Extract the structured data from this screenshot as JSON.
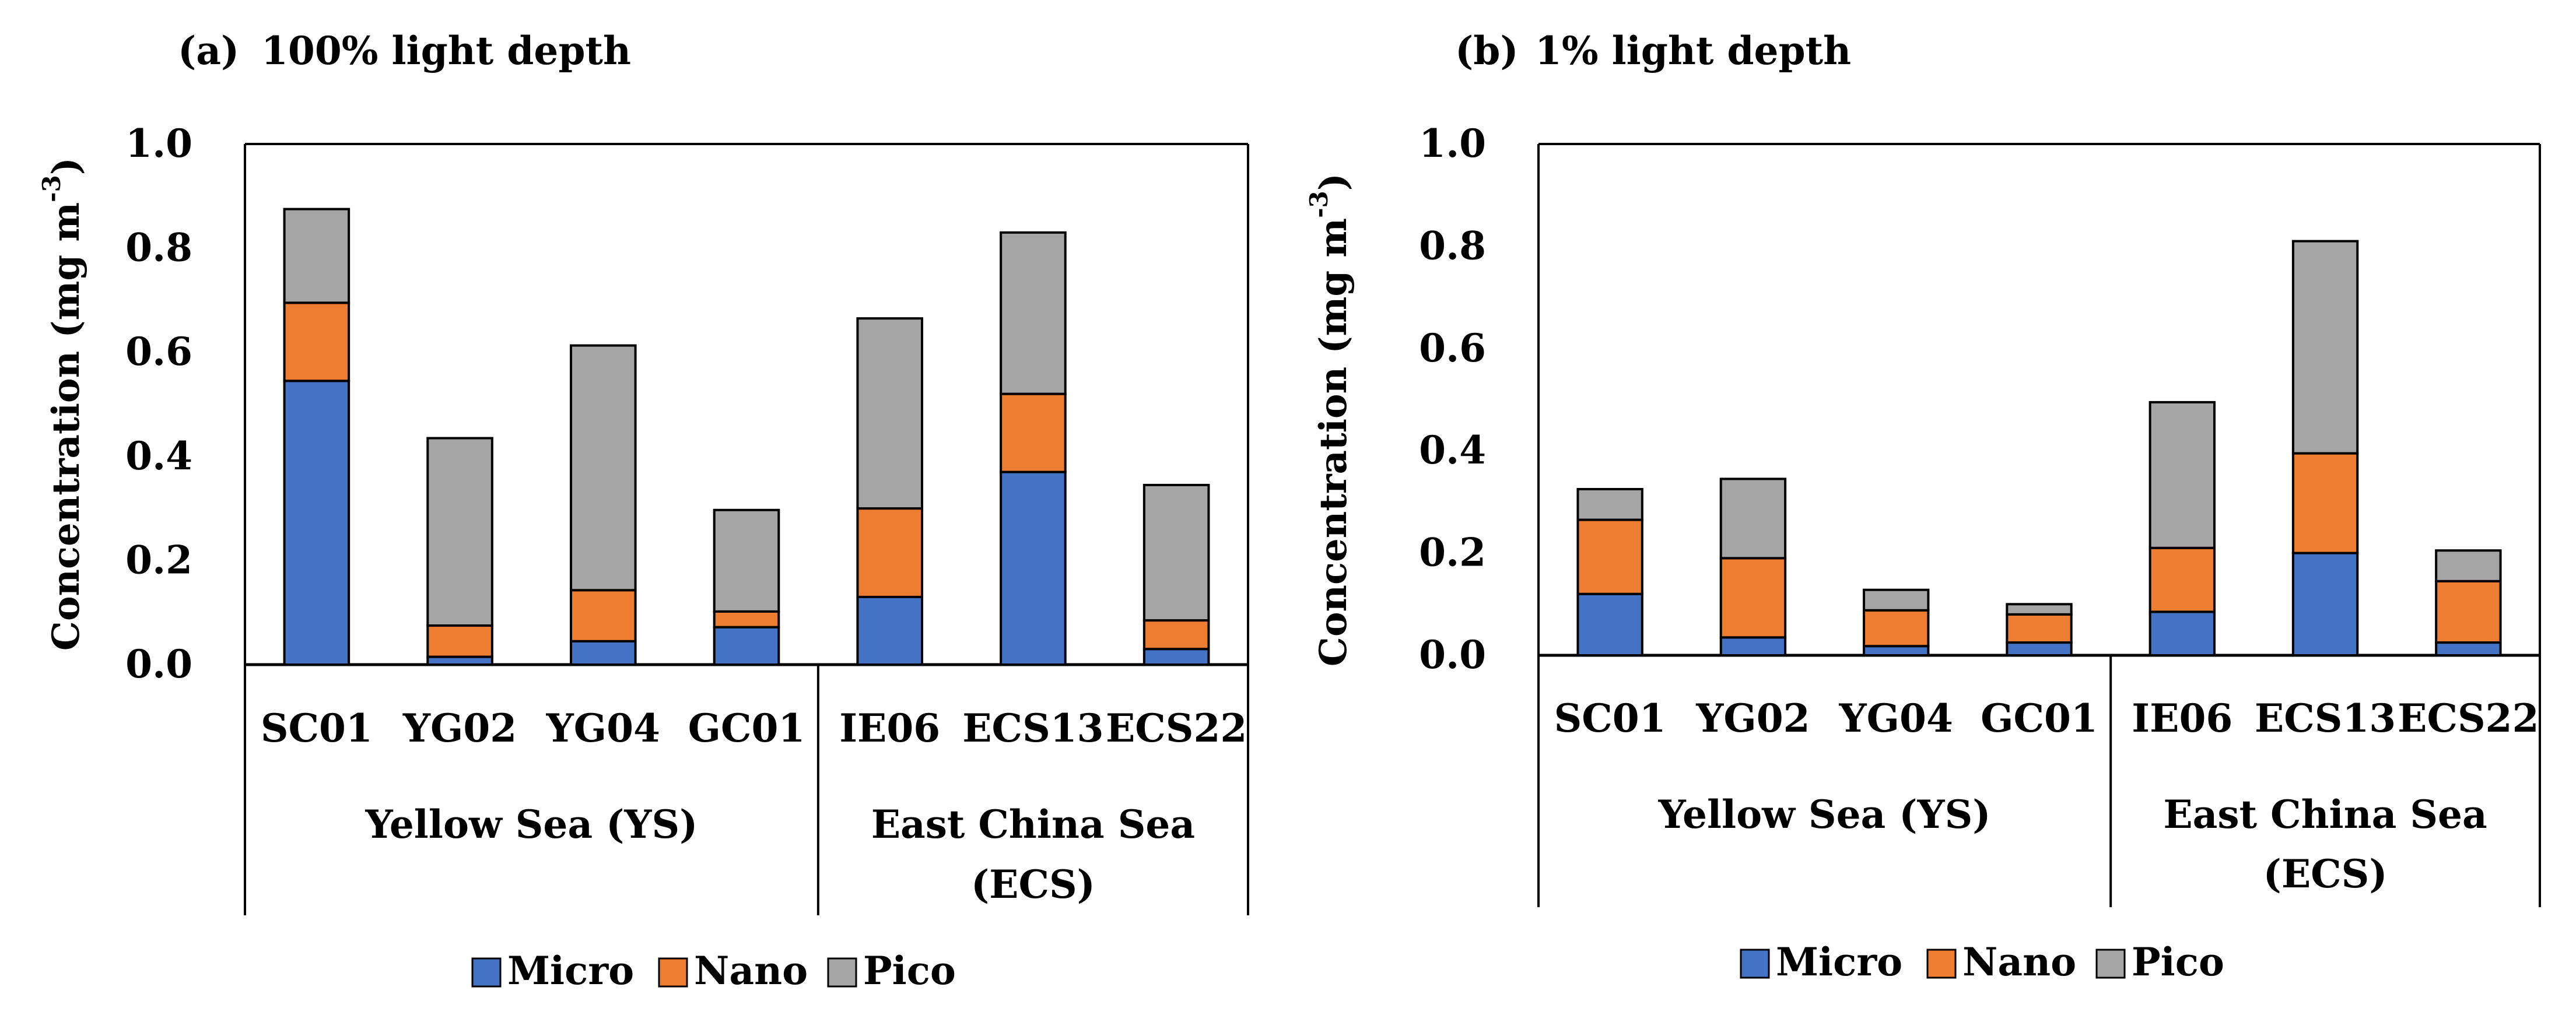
{
  "chart_data": [
    {
      "type": "bar",
      "stacked": true,
      "panel": "(a)",
      "title": "100% light depth",
      "ylabel": "Concentration  (mg  m",
      "ylabel_superscript": "-3",
      "ylabel_close": ")",
      "ylim": [
        0,
        1.0
      ],
      "yticks": [
        "0.0",
        "0.2",
        "0.4",
        "0.6",
        "0.8",
        "1.0"
      ],
      "categories": [
        "SC01",
        "YG02",
        "YG04",
        "GC01",
        "IE06",
        "ECS13",
        "ECS22"
      ],
      "groups": [
        {
          "label_lines": [
            "Yellow Sea (YS)"
          ],
          "count": 4
        },
        {
          "label_lines": [
            "East China Sea",
            "(ECS)"
          ],
          "count": 3
        }
      ],
      "series": [
        {
          "name": "Micro",
          "values": [
            0.545,
            0.015,
            0.045,
            0.072,
            0.13,
            0.37,
            0.03
          ]
        },
        {
          "name": "Nano",
          "values": [
            0.15,
            0.06,
            0.098,
            0.03,
            0.17,
            0.15,
            0.055
          ]
        },
        {
          "name": "Pico",
          "values": [
            0.18,
            0.36,
            0.47,
            0.195,
            0.365,
            0.31,
            0.26
          ]
        }
      ],
      "legend": "bottom"
    },
    {
      "type": "bar",
      "stacked": true,
      "panel": "(b)",
      "title": "1% light depth",
      "ylabel": "Concentration  (mg  m",
      "ylabel_superscript": "-3",
      "ylabel_close": ")",
      "ylim": [
        0,
        1.0
      ],
      "yticks": [
        "0.0",
        "0.2",
        "0.4",
        "0.6",
        "0.8",
        "1.0"
      ],
      "categories": [
        "SC01",
        "YG02",
        "YG04",
        "GC01",
        "IE06",
        "ECS13",
        "ECS22"
      ],
      "groups": [
        {
          "label_lines": [
            "Yellow Sea (YS)"
          ],
          "count": 4
        },
        {
          "label_lines": [
            "East China Sea",
            "(ECS)"
          ],
          "count": 3
        }
      ],
      "series": [
        {
          "name": "Micro",
          "values": [
            0.12,
            0.035,
            0.018,
            0.025,
            0.085,
            0.2,
            0.025
          ]
        },
        {
          "name": "Nano",
          "values": [
            0.145,
            0.155,
            0.07,
            0.055,
            0.125,
            0.195,
            0.12
          ]
        },
        {
          "name": "Pico",
          "values": [
            0.06,
            0.155,
            0.04,
            0.02,
            0.285,
            0.415,
            0.06
          ]
        }
      ],
      "legend": "bottom"
    }
  ],
  "colors": {
    "Micro": "#4472C4",
    "Nano": "#ED7D31",
    "Pico": "#A5A5A5"
  }
}
